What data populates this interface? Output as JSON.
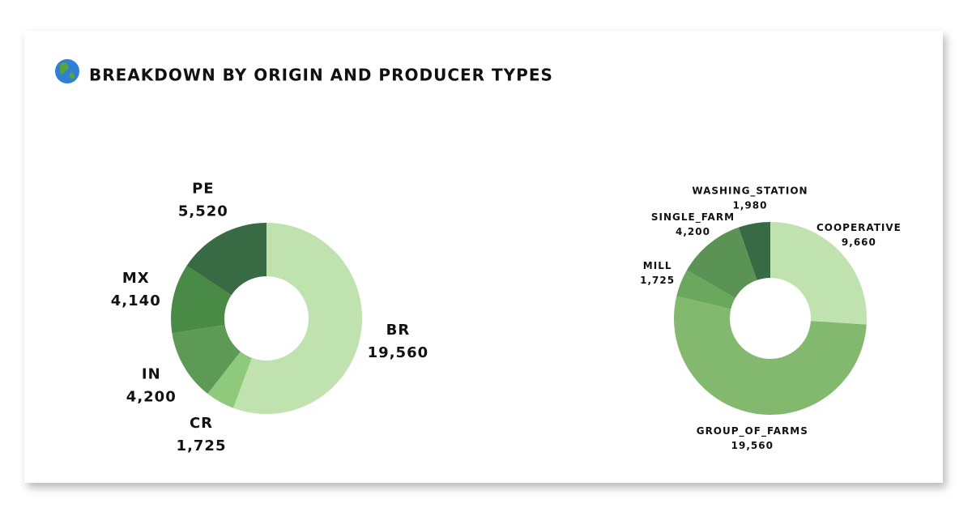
{
  "title": "BREAKDOWN BY ORIGIN AND PRODUCER TYPES",
  "chart_data": [
    {
      "type": "pie",
      "categories": [
        "BR",
        "CR",
        "IN",
        "MX",
        "PE"
      ],
      "values": [
        19560,
        1725,
        4200,
        4140,
        5520
      ],
      "value_labels": [
        "19,560",
        "1,725",
        "4,200",
        "4,140",
        "5,520"
      ],
      "colors": [
        "#bfe2ae",
        "#8fca7c",
        "#5c9a55",
        "#4a8a47",
        "#386a44"
      ]
    },
    {
      "type": "pie",
      "categories": [
        "COOPERATIVE",
        "GROUP_OF_FARMS",
        "MILL",
        "SINGLE_FARM",
        "WASHING_STATION"
      ],
      "values": [
        9660,
        19560,
        1725,
        4200,
        1980
      ],
      "value_labels": [
        "9,660",
        "19,560",
        "1,725",
        "4,200",
        "1,980"
      ],
      "colors": [
        "#bfe2ae",
        "#82b96f",
        "#6aa85e",
        "#5a9354",
        "#386a44"
      ]
    }
  ]
}
